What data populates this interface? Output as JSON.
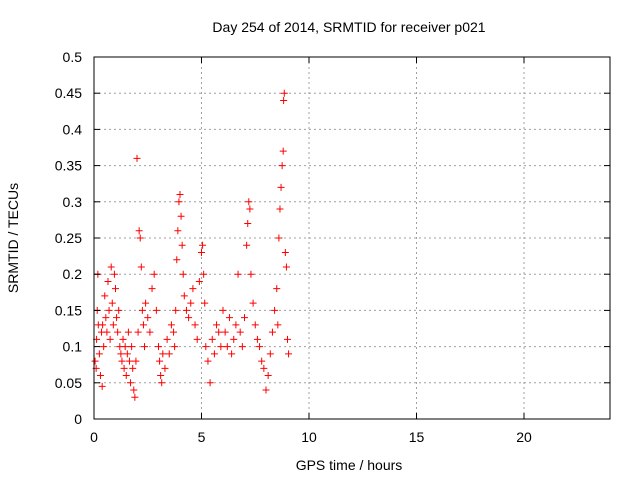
{
  "chart_data": {
    "type": "scatter",
    "title": "Day 254 of 2014, SRMTID for receiver p021",
    "xlabel": "GPS time / hours",
    "ylabel": "SRMTID / TECUs",
    "xlim": [
      0,
      24
    ],
    "ylim": [
      0,
      0.5
    ],
    "x_ticks": [
      0,
      5,
      10,
      15,
      20
    ],
    "y_ticks": [
      0,
      0.05,
      0.1,
      0.15,
      0.2,
      0.25,
      0.3,
      0.35,
      0.4,
      0.45,
      0.5
    ],
    "x_tick_labels": [
      "0",
      "5",
      "10",
      "15",
      "20"
    ],
    "y_tick_labels": [
      "0",
      "0.05",
      "0.1",
      "0.15",
      "0.2",
      "0.25",
      "0.3",
      "0.35",
      "0.4",
      "0.45",
      "0.5"
    ],
    "grid": true,
    "marker": "+",
    "colors": {
      "points": "#ff0000",
      "axes": "#000000",
      "grid": "#a0a0a0"
    },
    "series": [
      {
        "points": [
          [
            0.05,
            0.08
          ],
          [
            0.1,
            0.07
          ],
          [
            0.12,
            0.11
          ],
          [
            0.15,
            0.15
          ],
          [
            0.18,
            0.2
          ],
          [
            0.2,
            0.13
          ],
          [
            0.25,
            0.09
          ],
          [
            0.3,
            0.06
          ],
          [
            0.35,
            0.12
          ],
          [
            0.38,
            0.045
          ],
          [
            0.4,
            0.13
          ],
          [
            0.45,
            0.1
          ],
          [
            0.5,
            0.17
          ],
          [
            0.55,
            0.14
          ],
          [
            0.6,
            0.12
          ],
          [
            0.65,
            0.19
          ],
          [
            0.7,
            0.15
          ],
          [
            0.75,
            0.11
          ],
          [
            0.8,
            0.21
          ],
          [
            0.85,
            0.16
          ],
          [
            0.9,
            0.13
          ],
          [
            0.95,
            0.2
          ],
          [
            1.0,
            0.18
          ],
          [
            1.05,
            0.14
          ],
          [
            1.1,
            0.12
          ],
          [
            1.15,
            0.15
          ],
          [
            1.2,
            0.1
          ],
          [
            1.25,
            0.09
          ],
          [
            1.3,
            0.08
          ],
          [
            1.35,
            0.11
          ],
          [
            1.4,
            0.07
          ],
          [
            1.45,
            0.1
          ],
          [
            1.5,
            0.06
          ],
          [
            1.55,
            0.09
          ],
          [
            1.6,
            0.12
          ],
          [
            1.65,
            0.08
          ],
          [
            1.7,
            0.05
          ],
          [
            1.75,
            0.1
          ],
          [
            1.8,
            0.07
          ],
          [
            1.85,
            0.04
          ],
          [
            1.9,
            0.03
          ],
          [
            1.95,
            0.08
          ],
          [
            2.0,
            0.36
          ],
          [
            2.05,
            0.12
          ],
          [
            2.1,
            0.26
          ],
          [
            2.15,
            0.25
          ],
          [
            2.2,
            0.21
          ],
          [
            2.25,
            0.15
          ],
          [
            2.3,
            0.13
          ],
          [
            2.35,
            0.1
          ],
          [
            2.4,
            0.16
          ],
          [
            2.5,
            0.14
          ],
          [
            2.6,
            0.12
          ],
          [
            2.7,
            0.18
          ],
          [
            2.8,
            0.2
          ],
          [
            2.9,
            0.15
          ],
          [
            3.0,
            0.1
          ],
          [
            3.05,
            0.08
          ],
          [
            3.1,
            0.06
          ],
          [
            3.15,
            0.05
          ],
          [
            3.2,
            0.09
          ],
          [
            3.3,
            0.07
          ],
          [
            3.4,
            0.11
          ],
          [
            3.5,
            0.09
          ],
          [
            3.6,
            0.13
          ],
          [
            3.7,
            0.12
          ],
          [
            3.75,
            0.1
          ],
          [
            3.8,
            0.15
          ],
          [
            3.85,
            0.22
          ],
          [
            3.9,
            0.26
          ],
          [
            3.95,
            0.3
          ],
          [
            4.0,
            0.31
          ],
          [
            4.05,
            0.28
          ],
          [
            4.1,
            0.24
          ],
          [
            4.15,
            0.2
          ],
          [
            4.2,
            0.17
          ],
          [
            4.3,
            0.15
          ],
          [
            4.4,
            0.14
          ],
          [
            4.5,
            0.16
          ],
          [
            4.6,
            0.18
          ],
          [
            4.7,
            0.13
          ],
          [
            4.8,
            0.11
          ],
          [
            4.9,
            0.19
          ],
          [
            5.0,
            0.23
          ],
          [
            5.05,
            0.24
          ],
          [
            5.1,
            0.2
          ],
          [
            5.15,
            0.16
          ],
          [
            5.2,
            0.1
          ],
          [
            5.3,
            0.08
          ],
          [
            5.4,
            0.05
          ],
          [
            5.5,
            0.11
          ],
          [
            5.6,
            0.09
          ],
          [
            5.7,
            0.13
          ],
          [
            5.8,
            0.12
          ],
          [
            5.9,
            0.1
          ],
          [
            6.0,
            0.15
          ],
          [
            6.1,
            0.12
          ],
          [
            6.2,
            0.1
          ],
          [
            6.3,
            0.14
          ],
          [
            6.4,
            0.09
          ],
          [
            6.5,
            0.11
          ],
          [
            6.6,
            0.13
          ],
          [
            6.7,
            0.2
          ],
          [
            6.8,
            0.12
          ],
          [
            6.9,
            0.1
          ],
          [
            7.0,
            0.14
          ],
          [
            7.1,
            0.24
          ],
          [
            7.15,
            0.27
          ],
          [
            7.2,
            0.3
          ],
          [
            7.25,
            0.29
          ],
          [
            7.3,
            0.2
          ],
          [
            7.4,
            0.16
          ],
          [
            7.5,
            0.13
          ],
          [
            7.6,
            0.11
          ],
          [
            7.7,
            0.1
          ],
          [
            7.8,
            0.08
          ],
          [
            7.9,
            0.07
          ],
          [
            8.0,
            0.04
          ],
          [
            8.1,
            0.06
          ],
          [
            8.2,
            0.09
          ],
          [
            8.3,
            0.12
          ],
          [
            8.4,
            0.15
          ],
          [
            8.5,
            0.18
          ],
          [
            8.55,
            0.13
          ],
          [
            8.6,
            0.25
          ],
          [
            8.65,
            0.29
          ],
          [
            8.7,
            0.32
          ],
          [
            8.75,
            0.35
          ],
          [
            8.8,
            0.37
          ],
          [
            8.82,
            0.44
          ],
          [
            8.85,
            0.45
          ],
          [
            8.9,
            0.23
          ],
          [
            8.95,
            0.21
          ],
          [
            9.0,
            0.11
          ],
          [
            9.05,
            0.09
          ]
        ]
      }
    ]
  }
}
